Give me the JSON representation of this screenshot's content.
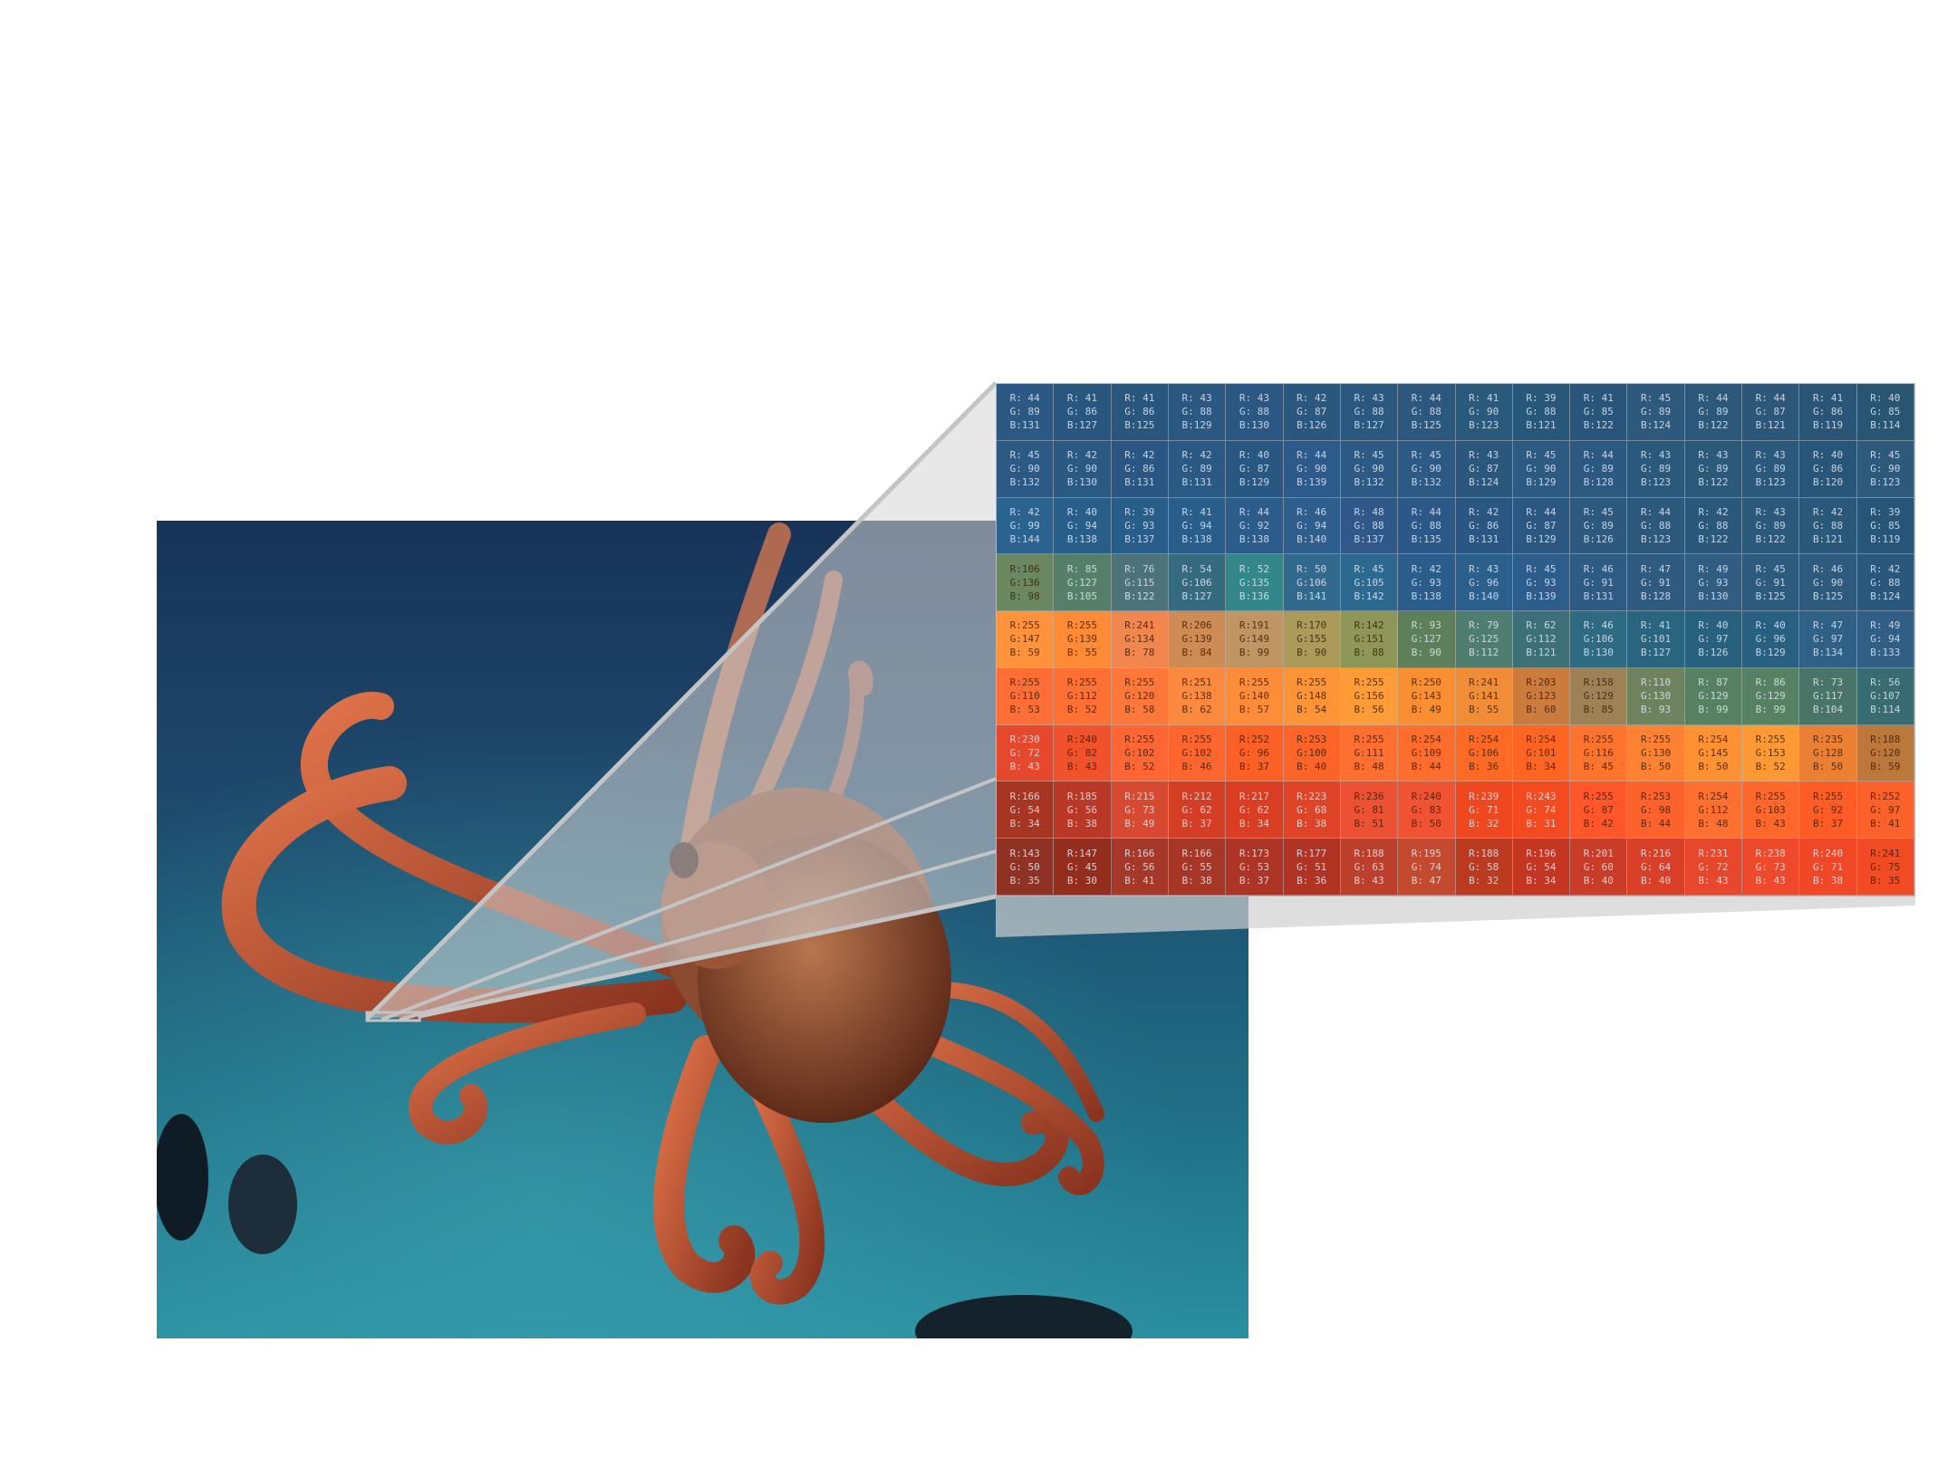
{
  "grid": {
    "rows": [
      [
        [
          44,
          89,
          131
        ],
        [
          41,
          86,
          127
        ],
        [
          41,
          86,
          125
        ],
        [
          43,
          88,
          129
        ],
        [
          43,
          88,
          130
        ],
        [
          42,
          87,
          126
        ],
        [
          43,
          88,
          127
        ],
        [
          44,
          88,
          125
        ],
        [
          41,
          90,
          123
        ],
        [
          39,
          88,
          121
        ],
        [
          41,
          85,
          122
        ],
        [
          45,
          89,
          124
        ],
        [
          44,
          89,
          122
        ],
        [
          44,
          87,
          121
        ],
        [
          41,
          86,
          119
        ],
        [
          40,
          85,
          114
        ]
      ],
      [
        [
          45,
          90,
          132
        ],
        [
          42,
          90,
          130
        ],
        [
          42,
          86,
          131
        ],
        [
          42,
          89,
          131
        ],
        [
          40,
          87,
          129
        ],
        [
          44,
          90,
          139
        ],
        [
          45,
          90,
          132
        ],
        [
          45,
          90,
          132
        ],
        [
          43,
          87,
          124
        ],
        [
          45,
          90,
          129
        ],
        [
          44,
          89,
          128
        ],
        [
          43,
          89,
          123
        ],
        [
          43,
          89,
          122
        ],
        [
          43,
          89,
          123
        ],
        [
          40,
          86,
          120
        ],
        [
          45,
          90,
          123
        ]
      ],
      [
        [
          42,
          99,
          144
        ],
        [
          40,
          94,
          138
        ],
        [
          39,
          93,
          137
        ],
        [
          41,
          94,
          138
        ],
        [
          44,
          92,
          138
        ],
        [
          46,
          94,
          140
        ],
        [
          48,
          88,
          137
        ],
        [
          44,
          88,
          135
        ],
        [
          42,
          86,
          131
        ],
        [
          44,
          87,
          129
        ],
        [
          45,
          89,
          126
        ],
        [
          44,
          88,
          123
        ],
        [
          42,
          88,
          122
        ],
        [
          43,
          89,
          122
        ],
        [
          42,
          88,
          121
        ],
        [
          39,
          85,
          119
        ]
      ],
      [
        [
          106,
          136,
          98
        ],
        [
          85,
          127,
          105
        ],
        [
          76,
          115,
          122
        ],
        [
          54,
          106,
          127
        ],
        [
          52,
          135,
          136
        ],
        [
          50,
          106,
          141
        ],
        [
          45,
          105,
          142
        ],
        [
          42,
          93,
          138
        ],
        [
          43,
          96,
          140
        ],
        [
          45,
          93,
          139
        ],
        [
          46,
          91,
          131
        ],
        [
          47,
          91,
          128
        ],
        [
          49,
          93,
          130
        ],
        [
          45,
          91,
          125
        ],
        [
          46,
          90,
          125
        ],
        [
          42,
          88,
          124
        ]
      ],
      [
        [
          255,
          147,
          59
        ],
        [
          255,
          139,
          55
        ],
        [
          241,
          134,
          78
        ],
        [
          206,
          139,
          84
        ],
        [
          191,
          149,
          99
        ],
        [
          170,
          155,
          90
        ],
        [
          142,
          151,
          88
        ],
        [
          93,
          127,
          90
        ],
        [
          79,
          125,
          112
        ],
        [
          62,
          112,
          121
        ],
        [
          46,
          106,
          130
        ],
        [
          41,
          101,
          127
        ],
        [
          40,
          97,
          126
        ],
        [
          40,
          96,
          129
        ],
        [
          47,
          97,
          134
        ],
        [
          49,
          94,
          133
        ]
      ],
      [
        [
          255,
          110,
          53
        ],
        [
          255,
          112,
          52
        ],
        [
          255,
          120,
          58
        ],
        [
          251,
          138,
          62
        ],
        [
          255,
          140,
          57
        ],
        [
          255,
          148,
          54
        ],
        [
          255,
          156,
          56
        ],
        [
          250,
          143,
          49
        ],
        [
          241,
          141,
          55
        ],
        [
          203,
          123,
          60
        ],
        [
          158,
          129,
          85
        ],
        [
          110,
          130,
          93
        ],
        [
          87,
          129,
          99
        ],
        [
          86,
          129,
          99
        ],
        [
          73,
          117,
          104
        ],
        [
          56,
          107,
          114
        ]
      ],
      [
        [
          230,
          72,
          43
        ],
        [
          240,
          82,
          43
        ],
        [
          255,
          102,
          52
        ],
        [
          255,
          102,
          46
        ],
        [
          252,
          96,
          37
        ],
        [
          253,
          100,
          40
        ],
        [
          255,
          111,
          48
        ],
        [
          254,
          109,
          44
        ],
        [
          254,
          106,
          36
        ],
        [
          254,
          101,
          34
        ],
        [
          255,
          116,
          45
        ],
        [
          255,
          130,
          50
        ],
        [
          254,
          145,
          50
        ],
        [
          255,
          153,
          52
        ],
        [
          235,
          128,
          50
        ],
        [
          188,
          120,
          59
        ]
      ],
      [
        [
          166,
          54,
          34
        ],
        [
          185,
          56,
          38
        ],
        [
          215,
          73,
          49
        ],
        [
          212,
          62,
          37
        ],
        [
          217,
          62,
          34
        ],
        [
          223,
          68,
          38
        ],
        [
          236,
          81,
          51
        ],
        [
          240,
          83,
          50
        ],
        [
          239,
          71,
          32
        ],
        [
          243,
          74,
          31
        ],
        [
          255,
          87,
          42
        ],
        [
          253,
          98,
          44
        ],
        [
          254,
          112,
          48
        ],
        [
          255,
          103,
          43
        ],
        [
          255,
          92,
          37
        ],
        [
          252,
          97,
          41
        ]
      ],
      [
        [
          143,
          50,
          35
        ],
        [
          147,
          45,
          30
        ],
        [
          166,
          56,
          41
        ],
        [
          166,
          55,
          38
        ],
        [
          173,
          53,
          37
        ],
        [
          177,
          51,
          36
        ],
        [
          188,
          63,
          43
        ],
        [
          195,
          74,
          47
        ],
        [
          188,
          58,
          32
        ],
        [
          196,
          54,
          34
        ],
        [
          201,
          60,
          40
        ],
        [
          216,
          64,
          40
        ],
        [
          231,
          72,
          43
        ],
        [
          238,
          73,
          43
        ],
        [
          240,
          71,
          38
        ],
        [
          241,
          75,
          35
        ]
      ]
    ]
  }
}
